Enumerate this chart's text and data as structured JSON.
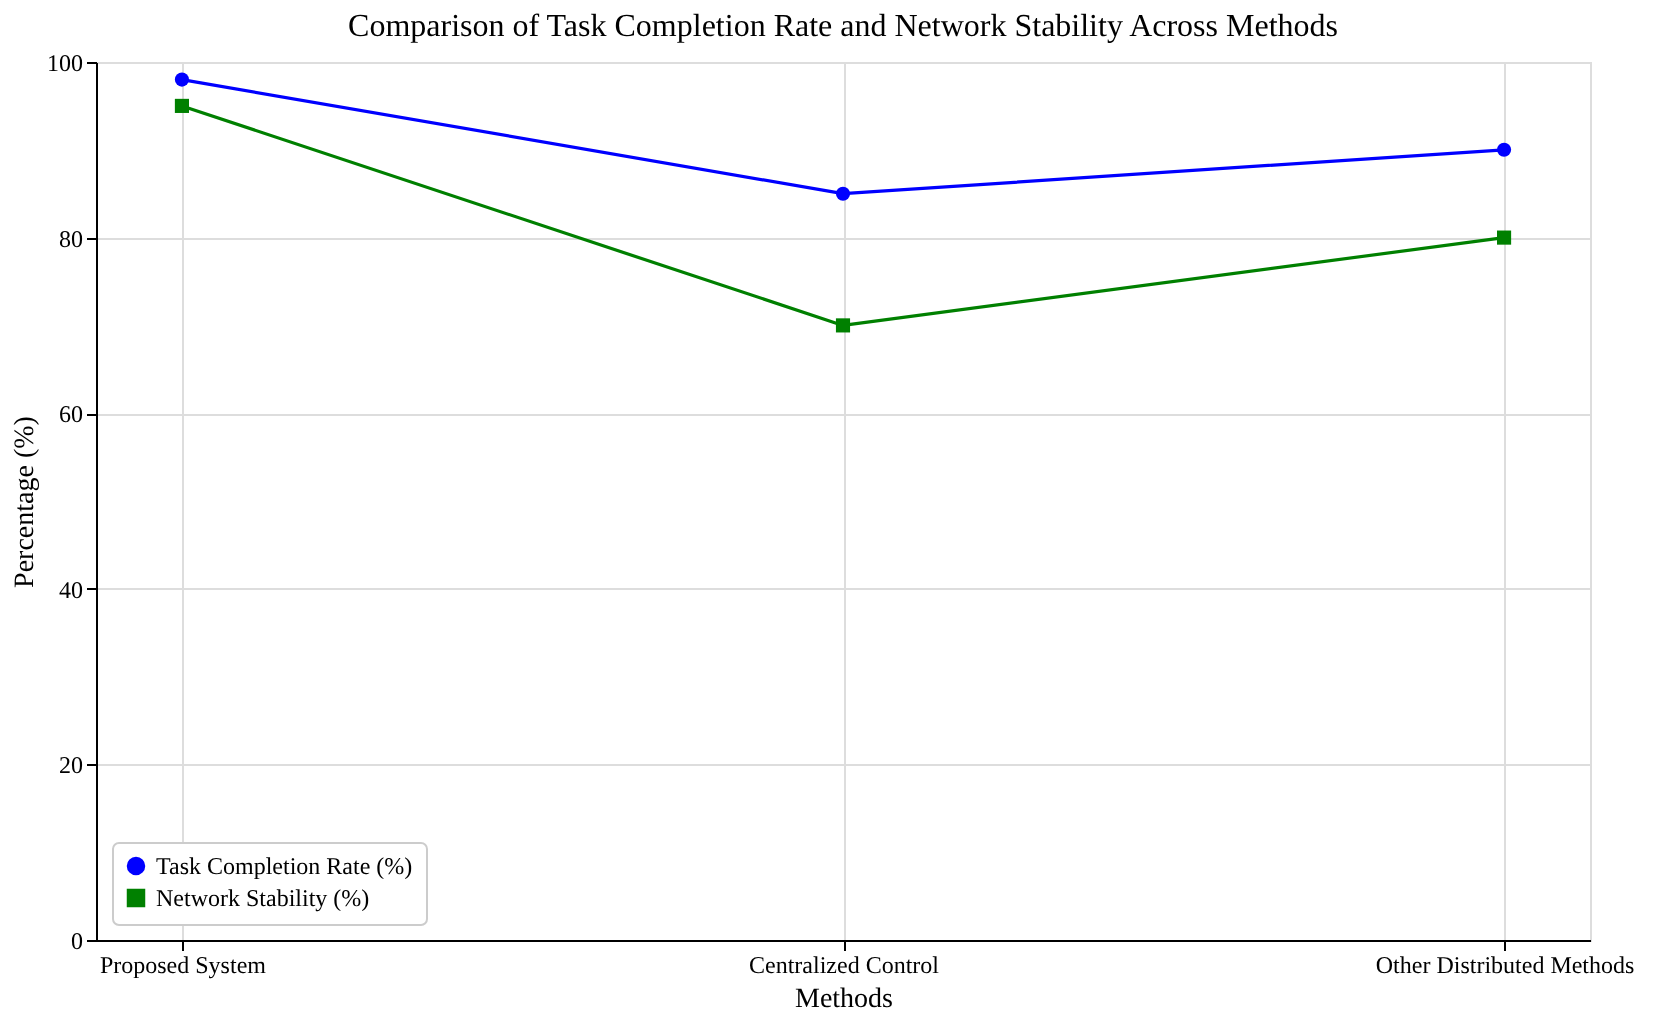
{
  "chart_data": {
    "type": "line",
    "title": "Comparison of Task Completion Rate and Network Stability Across Methods",
    "xlabel": "Methods",
    "ylabel": "Percentage (%)",
    "categories": [
      "Proposed System",
      "Centralized Control",
      "Other Distributed Methods"
    ],
    "series": [
      {
        "name": "Task Completion Rate (%)",
        "color": "#0000ff",
        "marker": "circle",
        "values": [
          98,
          85,
          90
        ]
      },
      {
        "name": "Network Stability (%)",
        "color": "#008000",
        "marker": "square",
        "values": [
          95,
          70,
          80
        ]
      }
    ],
    "ylim": [
      0,
      100
    ],
    "yticks": [
      0,
      20,
      40,
      60,
      80,
      100
    ],
    "grid": true,
    "legend": "bottom left",
    "line_style": "solid"
  }
}
